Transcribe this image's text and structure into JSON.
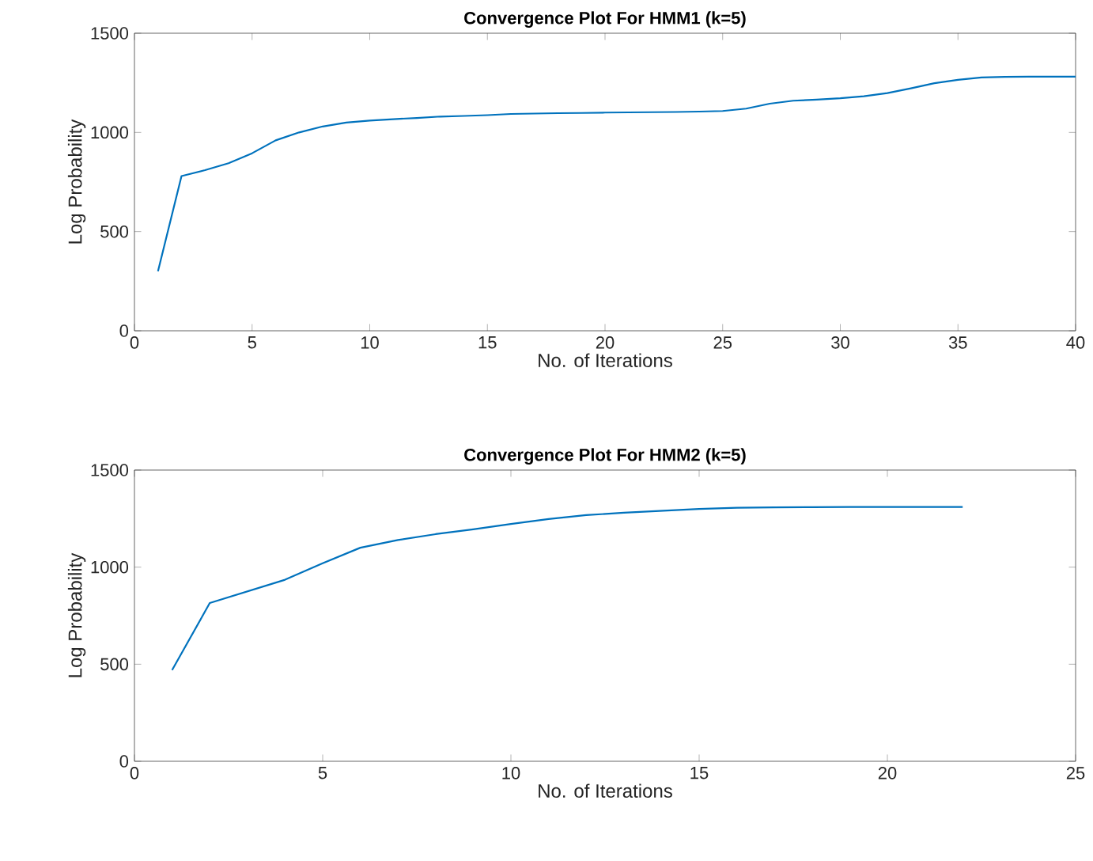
{
  "chart_data": [
    {
      "type": "line",
      "title": "Convergence Plot For HMM1 (k=5)",
      "xlabel": "No. of Iterations",
      "ylabel": "Log Probability",
      "x": [
        1,
        2,
        3,
        4,
        5,
        6,
        7,
        8,
        9,
        10,
        11,
        12,
        13,
        14,
        15,
        16,
        17,
        18,
        19,
        20,
        21,
        22,
        23,
        24,
        25,
        26,
        27,
        28,
        29,
        30,
        31,
        32,
        33,
        34,
        35,
        36,
        37,
        38,
        39,
        40
      ],
      "series": [
        {
          "color": "#0072bd",
          "values": [
            300,
            780,
            810,
            845,
            895,
            960,
            1000,
            1030,
            1050,
            1060,
            1067,
            1073,
            1080,
            1083,
            1087,
            1093,
            1095,
            1097,
            1098,
            1100,
            1101,
            1102,
            1103,
            1105,
            1108,
            1120,
            1145,
            1160,
            1165,
            1172,
            1182,
            1198,
            1222,
            1248,
            1265,
            1277,
            1280,
            1281,
            1281,
            1281
          ]
        }
      ],
      "xlim": [
        0,
        40
      ],
      "xticks": [
        0,
        5,
        10,
        15,
        20,
        25,
        30,
        35,
        40
      ],
      "ylim": [
        0,
        1500
      ],
      "yticks": [
        0,
        500,
        1000,
        1500
      ]
    },
    {
      "type": "line",
      "title": "Convergence Plot For HMM2 (k=5)",
      "xlabel": "No. of Iterations",
      "ylabel": "Log Probability",
      "x": [
        1,
        2,
        3,
        4,
        5,
        6,
        7,
        8,
        9,
        10,
        11,
        12,
        13,
        14,
        15,
        16,
        17,
        18,
        19,
        20,
        21,
        22
      ],
      "series": [
        {
          "color": "#0072bd",
          "values": [
            470,
            815,
            875,
            935,
            1020,
            1100,
            1140,
            1170,
            1195,
            1222,
            1248,
            1268,
            1280,
            1290,
            1300,
            1306,
            1308,
            1309,
            1310,
            1310,
            1310,
            1310
          ]
        }
      ],
      "xlim": [
        0,
        25
      ],
      "xticks": [
        0,
        5,
        10,
        15,
        20,
        25
      ],
      "ylim": [
        0,
        1500
      ],
      "yticks": [
        0,
        500,
        1000,
        1500
      ]
    }
  ]
}
